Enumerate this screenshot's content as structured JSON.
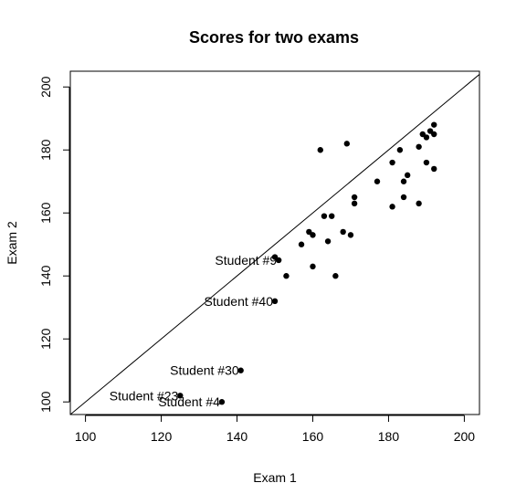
{
  "chart_data": {
    "type": "scatter",
    "title": "Scores for two exams",
    "xlabel": "Exam 1",
    "ylabel": "Exam 2",
    "xlim": [
      96,
      204
    ],
    "ylim": [
      96,
      205
    ],
    "xticks": [
      "100",
      "120",
      "140",
      "160",
      "180",
      "200"
    ],
    "yticks": [
      "100",
      "120",
      "140",
      "160",
      "180",
      "200"
    ],
    "reference_line": {
      "slope": 1,
      "intercept": 0
    },
    "points": [
      {
        "x": 136,
        "y": 100,
        "label": "Student #4"
      },
      {
        "x": 125,
        "y": 102,
        "label": "Student #23"
      },
      {
        "x": 141,
        "y": 110,
        "label": "Student #30"
      },
      {
        "x": 150,
        "y": 132,
        "label": "Student #40"
      },
      {
        "x": 151,
        "y": 145,
        "label": "Student #9"
      },
      {
        "x": 150,
        "y": 146
      },
      {
        "x": 153,
        "y": 140
      },
      {
        "x": 157,
        "y": 150
      },
      {
        "x": 159,
        "y": 154
      },
      {
        "x": 160,
        "y": 153
      },
      {
        "x": 160,
        "y": 143
      },
      {
        "x": 162,
        "y": 180
      },
      {
        "x": 163,
        "y": 159
      },
      {
        "x": 164,
        "y": 151
      },
      {
        "x": 165,
        "y": 159
      },
      {
        "x": 166,
        "y": 140
      },
      {
        "x": 168,
        "y": 154
      },
      {
        "x": 169,
        "y": 182
      },
      {
        "x": 170,
        "y": 153
      },
      {
        "x": 171,
        "y": 163
      },
      {
        "x": 171,
        "y": 165
      },
      {
        "x": 177,
        "y": 170
      },
      {
        "x": 181,
        "y": 176
      },
      {
        "x": 181,
        "y": 162
      },
      {
        "x": 183,
        "y": 180
      },
      {
        "x": 184,
        "y": 170
      },
      {
        "x": 184,
        "y": 165
      },
      {
        "x": 185,
        "y": 172
      },
      {
        "x": 188,
        "y": 181
      },
      {
        "x": 188,
        "y": 163
      },
      {
        "x": 189,
        "y": 185
      },
      {
        "x": 190,
        "y": 176
      },
      {
        "x": 190,
        "y": 184
      },
      {
        "x": 191,
        "y": 186
      },
      {
        "x": 192,
        "y": 188
      },
      {
        "x": 192,
        "y": 185
      },
      {
        "x": 192,
        "y": 174
      }
    ]
  }
}
